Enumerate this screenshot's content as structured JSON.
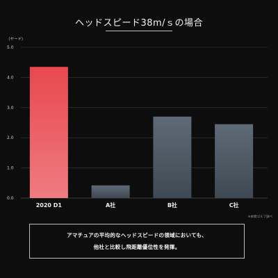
{
  "chart_data": {
    "type": "bar",
    "title": "ヘッドスピード38m/ｓの場合",
    "ylabel": "（ヤード）",
    "categories": [
      "2020 D1",
      "A社",
      "B社",
      "C社"
    ],
    "values": [
      4.35,
      0.42,
      2.7,
      2.45
    ],
    "ylim": [
      0,
      5
    ],
    "yticks": [
      "0.0",
      "1.0",
      "2.0",
      "3.0",
      "4.0",
      "5.0"
    ],
    "grid": true,
    "legend": "none",
    "note": "※本間ゴルフ調べ",
    "colors": {
      "highlight_top": "#e8484f",
      "highlight_bottom": "#ef7b80",
      "other_top": "#5e6a76",
      "other_bottom": "#3f4953",
      "grid": "#3a3a3a"
    }
  },
  "caption": {
    "line1": "アマチュアの平均的なヘッドスピードの領域においても、",
    "line2": "他社と比較し飛距離優位性を発揮。"
  }
}
